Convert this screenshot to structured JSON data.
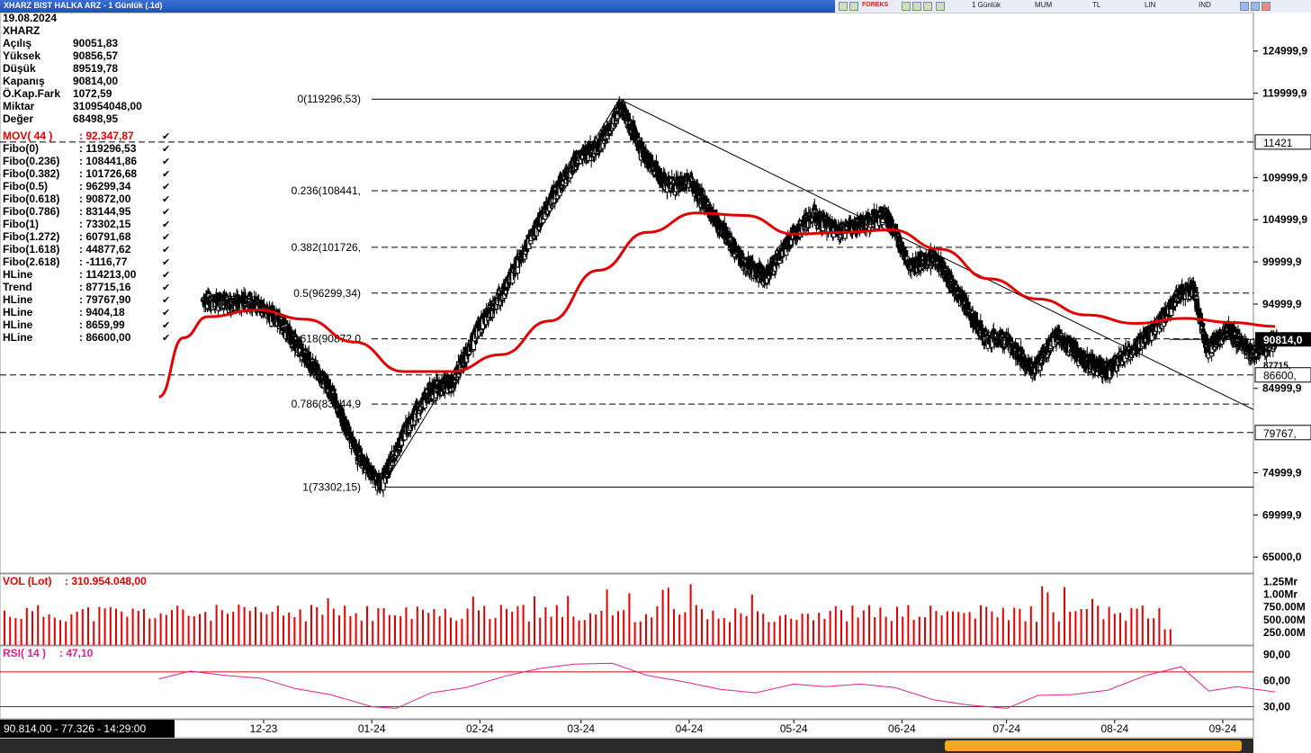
{
  "window": {
    "title": "XHARZ BIST HALKA ARZ - 1 Günlük (.1d)",
    "period": "1 Günlük",
    "chart_style": "MUM",
    "currency": "TL",
    "scale": "LIN",
    "indicator_mode": "IND",
    "logo": "FOREKS"
  },
  "info_panel": {
    "date": "19.08.2024",
    "symbol": "XHARZ",
    "rows": [
      {
        "label": "Açılış",
        "value": "90051,83"
      },
      {
        "label": "Yüksek",
        "value": "90856,57"
      },
      {
        "label": "Düşük",
        "value": "89519,78"
      },
      {
        "label": "Kapanış",
        "value": "90814,00"
      },
      {
        "label": "Ö.Kap.Fark",
        "value": "1072,59"
      },
      {
        "label": "Miktar",
        "value": "310954048,00"
      },
      {
        "label": "Değer",
        "value": "68498,95"
      }
    ]
  },
  "indicators": [
    {
      "label": "MOV( 44 )",
      "value": ": 92.347,87",
      "color": "#e00000"
    },
    {
      "label": "Fibo(0)",
      "value": ": 119296,53",
      "color": "#000000"
    },
    {
      "label": "Fibo(0.236)",
      "value": ": 108441,86",
      "color": "#000000"
    },
    {
      "label": "Fibo(0.382)",
      "value": ": 101726,68",
      "color": "#000000"
    },
    {
      "label": "Fibo(0.5)",
      "value": ": 96299,34",
      "color": "#000000"
    },
    {
      "label": "Fibo(0.618)",
      "value": ": 90872,00",
      "color": "#000000"
    },
    {
      "label": "Fibo(0.786)",
      "value": ": 83144,95",
      "color": "#000000"
    },
    {
      "label": "Fibo(1)",
      "value": ": 73302,15",
      "color": "#000000"
    },
    {
      "label": "Fibo(1.272)",
      "value": ": 60791,68",
      "color": "#000000"
    },
    {
      "label": "Fibo(1.618)",
      "value": ": 44877,62",
      "color": "#000000"
    },
    {
      "label": "Fibo(2.618)",
      "value": ": -1116,77",
      "color": "#000000"
    },
    {
      "label": "HLine",
      "value": ": 114213,00",
      "color": "#000000"
    },
    {
      "label": "Trend",
      "value": ": 87715,16",
      "color": "#000000"
    },
    {
      "label": "HLine",
      "value": ": 79767,90",
      "color": "#000000"
    },
    {
      "label": "HLine",
      "value": ": 9404,18",
      "color": "#000000"
    },
    {
      "label": "HLine",
      "value": ": 8659,99",
      "color": "#000000"
    },
    {
      "label": "HLine",
      "value": ": 86600,00",
      "color": "#000000"
    }
  ],
  "status_bar": "90.814,00 - 77.326 - 14:29:00",
  "colors": {
    "up": "#000000",
    "down": "#000000",
    "ma": "#e00000",
    "volume": "#e00000",
    "rsi": "#e0208a",
    "rsi_band": "#e00000"
  },
  "chart_data": [
    {
      "type": "candlestick",
      "title": "XHARZ BIST HALKA ARZ - 1 Günlük (.1d)",
      "x_ticks": [
        "12-23",
        "01-24",
        "02-24",
        "03-24",
        "04-24",
        "05-24",
        "06-24",
        "07-24",
        "08-24",
        "09-24"
      ],
      "y_ticks": [
        "124999,9",
        "119999,9",
        "109999,9",
        "104999,9",
        "99999,9",
        "94999,9",
        "84999,9",
        "74999,9",
        "69999,9",
        "65000,0"
      ],
      "y_range": [
        63000,
        127500
      ],
      "x_range_days": [
        "2023-11-01",
        "2024-09-30"
      ],
      "last_price_label": "90814,0",
      "price_labels": [
        "11421",
        "86600,",
        "79767,"
      ],
      "trend_label": "87715,",
      "fibonacci": [
        {
          "label": "0(119296,53)",
          "value": 119296.53
        },
        {
          "label": "0.236(108441,",
          "value": 108441.86
        },
        {
          "label": "0.382(101726,",
          "value": 101726.68
        },
        {
          "label": "0.5(96299,34)",
          "value": 96299.34
        },
        {
          "label": "0.618(90872,0",
          "value": 90872.0
        },
        {
          "label": "0.786(83144,9",
          "value": 83144.95
        },
        {
          "label": "1(73302,15)",
          "value": 73302.15
        }
      ],
      "hlines": [
        114213.0,
        86600.0,
        79767.9
      ],
      "ohlc_anchor_closes": [
        [
          "2023-11-13",
          95500
        ],
        [
          "2023-11-28",
          95000
        ],
        [
          "2023-12-05",
          93000
        ],
        [
          "2023-12-12",
          89000
        ],
        [
          "2023-12-20",
          84500
        ],
        [
          "2023-12-27",
          77500
        ],
        [
          "2024-01-03",
          73500
        ],
        [
          "2024-01-10",
          80000
        ],
        [
          "2024-01-17",
          84500
        ],
        [
          "2024-01-24",
          86000
        ],
        [
          "2024-01-31",
          92000
        ],
        [
          "2024-02-07",
          96500
        ],
        [
          "2024-02-14",
          102000
        ],
        [
          "2024-02-21",
          107500
        ],
        [
          "2024-02-28",
          112000
        ],
        [
          "2024-03-06",
          114000
        ],
        [
          "2024-03-12",
          118500
        ],
        [
          "2024-03-18",
          113000
        ],
        [
          "2024-03-25",
          109000
        ],
        [
          "2024-04-01",
          109500
        ],
        [
          "2024-04-08",
          105000
        ],
        [
          "2024-04-15",
          100500
        ],
        [
          "2024-04-22",
          98000
        ],
        [
          "2024-04-29",
          102500
        ],
        [
          "2024-05-06",
          105500
        ],
        [
          "2024-05-13",
          103500
        ],
        [
          "2024-05-20",
          104500
        ],
        [
          "2024-05-27",
          105500
        ],
        [
          "2024-06-03",
          99500
        ],
        [
          "2024-06-10",
          100500
        ],
        [
          "2024-06-17",
          96000
        ],
        [
          "2024-06-24",
          91000
        ],
        [
          "2024-07-01",
          90500
        ],
        [
          "2024-07-08",
          87000
        ],
        [
          "2024-07-15",
          91500
        ],
        [
          "2024-07-22",
          88500
        ],
        [
          "2024-07-29",
          87000
        ],
        [
          "2024-08-05",
          89500
        ],
        [
          "2024-08-12",
          92000
        ],
        [
          "2024-08-19",
          96000
        ],
        [
          "2024-08-23",
          97000
        ],
        [
          "2024-08-27",
          89500
        ],
        [
          "2024-09-02",
          92000
        ],
        [
          "2024-09-09",
          89000
        ],
        [
          "2024-09-16",
          90814
        ]
      ],
      "moving_average": {
        "name": "MOV( 44 )",
        "points": [
          [
            "2023-11-01",
            84000
          ],
          [
            "2023-11-08",
            91000
          ],
          [
            "2023-11-15",
            93500
          ],
          [
            "2023-11-29",
            94300
          ],
          [
            "2023-12-13",
            93200
          ],
          [
            "2023-12-27",
            90500
          ],
          [
            "2024-01-10",
            87000
          ],
          [
            "2024-01-24",
            87000
          ],
          [
            "2024-02-07",
            89000
          ],
          [
            "2024-02-21",
            93000
          ],
          [
            "2024-03-06",
            99000
          ],
          [
            "2024-03-20",
            103500
          ],
          [
            "2024-04-03",
            105800
          ],
          [
            "2024-04-17",
            105500
          ],
          [
            "2024-05-01",
            103300
          ],
          [
            "2024-05-15",
            103500
          ],
          [
            "2024-05-29",
            103800
          ],
          [
            "2024-06-12",
            101500
          ],
          [
            "2024-06-26",
            98000
          ],
          [
            "2024-07-10",
            95600
          ],
          [
            "2024-07-24",
            93700
          ],
          [
            "2024-08-07",
            92700
          ],
          [
            "2024-08-21",
            93300
          ],
          [
            "2024-09-04",
            92800
          ],
          [
            "2024-09-16",
            92348
          ]
        ]
      }
    },
    {
      "type": "bar",
      "title": "VOL (Lot)",
      "value_label": ": 310.954.048,00",
      "y_ticks": [
        "1.25Mr",
        "1.00Mr",
        "750.00M",
        "500.00M",
        "250.00M"
      ],
      "y_range": [
        0,
        1400000000
      ]
    },
    {
      "type": "line",
      "title": "RSI( 14 )",
      "value_label": ": 47,10",
      "y_ticks": [
        "90,00",
        "60,00",
        "30,00"
      ],
      "y_range": [
        16,
        100
      ],
      "bands": [
        70,
        30
      ],
      "points": [
        [
          "2023-11-01",
          62
        ],
        [
          "2023-11-10",
          71
        ],
        [
          "2023-11-20",
          66
        ],
        [
          "2023-11-30",
          63
        ],
        [
          "2023-12-10",
          51
        ],
        [
          "2023-12-20",
          44
        ],
        [
          "2024-01-01",
          30
        ],
        [
          "2024-01-08",
          28
        ],
        [
          "2024-01-18",
          46
        ],
        [
          "2024-01-28",
          52
        ],
        [
          "2024-02-08",
          65
        ],
        [
          "2024-02-18",
          74
        ],
        [
          "2024-02-28",
          79
        ],
        [
          "2024-03-10",
          80
        ],
        [
          "2024-03-20",
          66
        ],
        [
          "2024-03-30",
          59
        ],
        [
          "2024-04-10",
          50
        ],
        [
          "2024-04-20",
          46
        ],
        [
          "2024-05-01",
          56
        ],
        [
          "2024-05-10",
          53
        ],
        [
          "2024-05-20",
          56
        ],
        [
          "2024-05-30",
          52
        ],
        [
          "2024-06-10",
          38
        ],
        [
          "2024-06-20",
          32
        ],
        [
          "2024-07-01",
          28
        ],
        [
          "2024-07-10",
          43
        ],
        [
          "2024-07-20",
          44
        ],
        [
          "2024-07-30",
          49
        ],
        [
          "2024-08-10",
          66
        ],
        [
          "2024-08-20",
          76
        ],
        [
          "2024-08-28",
          48
        ],
        [
          "2024-09-05",
          53
        ],
        [
          "2024-09-16",
          47
        ]
      ]
    }
  ]
}
